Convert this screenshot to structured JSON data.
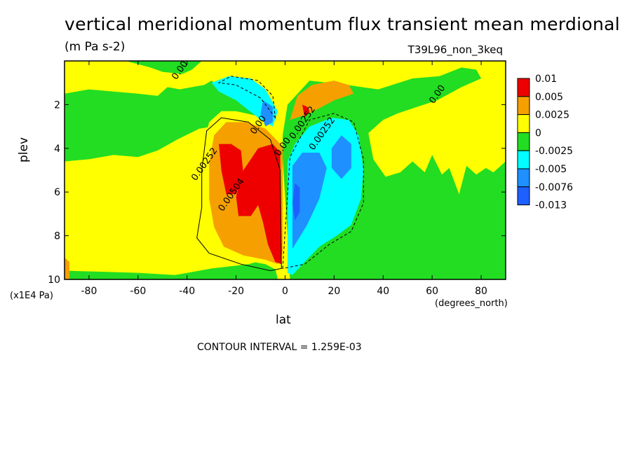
{
  "title": "vertical meridional momentum flux transient mean merdional",
  "units": "(m Pa s-2)",
  "experiment": "T39L96_non_3keq",
  "contour_interval": "CONTOUR INTERVAL = 1.259E-03",
  "colors": {
    "red": "#ee0000",
    "orange": "#f5a000",
    "yellow": "#ffff00",
    "green": "#22dd22",
    "cyan": "#00ffff",
    "blue": "#1e90ff",
    "darkblue": "#1e60ff"
  },
  "chart_data": {
    "type": "heatmap",
    "title": "vertical meridional momentum flux transient mean merdional",
    "xlabel": "lat",
    "x_units": "(degrees_north)",
    "ylabel": "plev",
    "y_units": "(x1E4 Pa)",
    "xlim": [
      -90,
      90
    ],
    "ylim": [
      10,
      0
    ],
    "x_ticks": [
      "-80",
      "-60",
      "-40",
      "-20",
      "0",
      "20",
      "40",
      "60",
      "80"
    ],
    "y_ticks": [
      "2",
      "4",
      "6",
      "8",
      "10"
    ],
    "colorbar": {
      "labels": [
        "0.01",
        "0.005",
        "0.0025",
        "0",
        "-0.0025",
        "-0.005",
        "-0.0076",
        "-0.013"
      ],
      "colors": [
        "#ee0000",
        "#f5a000",
        "#ffff00",
        "#22dd22",
        "#00ffff",
        "#1e90ff",
        "#1e60ff"
      ]
    },
    "contour_labels": [
      {
        "text": "0.00",
        "lat": -42,
        "plev": 0.5
      },
      {
        "text": "0.00",
        "lat": 63,
        "plev": 1.6
      },
      {
        "text": "0.00252",
        "lat": 8,
        "plev": 2.9
      },
      {
        "text": "0.00",
        "lat": -10,
        "plev": 3.0
      },
      {
        "text": "0.00252",
        "lat": 16,
        "plev": 3.4
      },
      {
        "text": "0.00",
        "lat": 0,
        "plev": 4.0
      },
      {
        "text": "0.00252",
        "lat": -32,
        "plev": 4.8
      },
      {
        "text": "0.00504",
        "lat": -21,
        "plev": 6.2
      }
    ]
  }
}
